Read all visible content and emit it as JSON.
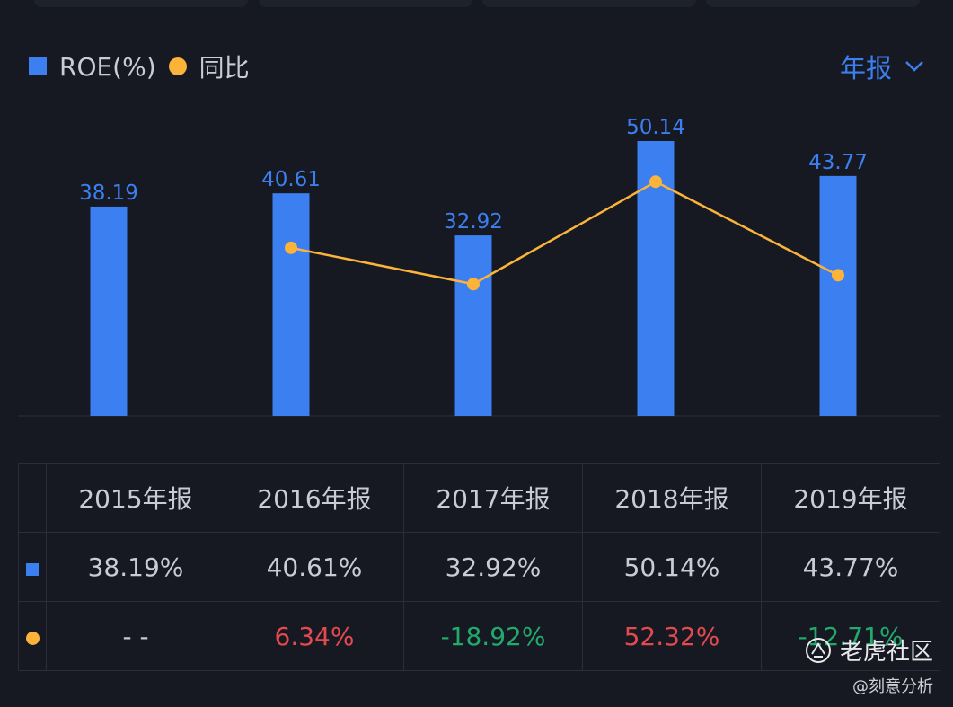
{
  "legend": {
    "bar_series": "ROE(%)",
    "line_series": "同比"
  },
  "period_selector": {
    "value": "年报"
  },
  "colors": {
    "bar": "#3b7ff0",
    "line": "#fbb33a",
    "positive": "#e24a4f",
    "negative": "#22a96c",
    "background": "#161922"
  },
  "chart_data": {
    "type": "bar",
    "categories": [
      "2015年报",
      "2016年报",
      "2017年报",
      "2018年报",
      "2019年报"
    ],
    "series": [
      {
        "name": "ROE(%)",
        "type": "bar",
        "values": [
          38.19,
          40.61,
          32.92,
          50.14,
          43.77
        ],
        "labels": [
          "38.19",
          "40.61",
          "32.92",
          "50.14",
          "43.77"
        ]
      },
      {
        "name": "同比",
        "type": "line",
        "values": [
          null,
          6.34,
          -18.92,
          52.32,
          -12.71
        ]
      }
    ],
    "legend_position": "top-left",
    "grid": false
  },
  "table": {
    "headers": [
      "2015年报",
      "2016年报",
      "2017年报",
      "2018年报",
      "2019年报"
    ],
    "roe_row": [
      "38.19%",
      "40.61%",
      "32.92%",
      "50.14%",
      "43.77%"
    ],
    "yoy_row": [
      "- -",
      "6.34%",
      "-18.92%",
      "52.32%",
      "-12.71%"
    ]
  },
  "watermark": {
    "brand": "老虎社区",
    "author": "@刻意分析"
  }
}
